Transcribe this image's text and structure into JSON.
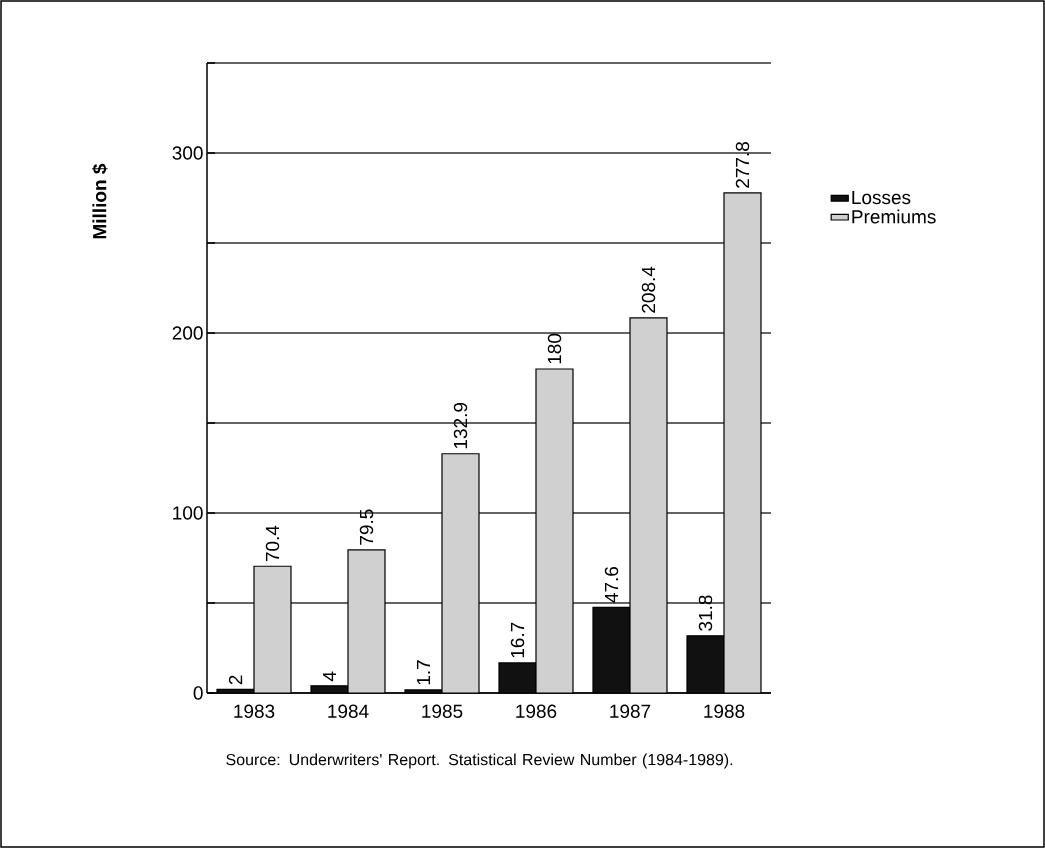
{
  "chart_data": {
    "type": "bar",
    "ylabel": "Million $",
    "categories": [
      "1983",
      "1984",
      "1985",
      "1986",
      "1987",
      "1988"
    ],
    "series": [
      {
        "name": "Losses",
        "color": "#111111",
        "values": [
          2,
          4,
          1.7,
          16.7,
          47.6,
          31.8
        ]
      },
      {
        "name": "Premiums",
        "color": "#d0d0d0",
        "values": [
          70.4,
          79.5,
          132.9,
          180,
          208.4,
          277.8
        ]
      }
    ],
    "ylim": [
      0,
      350
    ],
    "yticks": [
      0,
      {
        "value": 50,
        "label": null
      },
      100,
      {
        "value": 150,
        "label": null
      },
      200,
      {
        "value": 250,
        "label": null
      },
      300,
      {
        "value": 350,
        "label": null
      }
    ],
    "grid": "y",
    "legend": "right",
    "data_labels": true,
    "annotations": [
      "Source: Underwriters' Report. Statistical Review Number (1984-1989)."
    ]
  }
}
